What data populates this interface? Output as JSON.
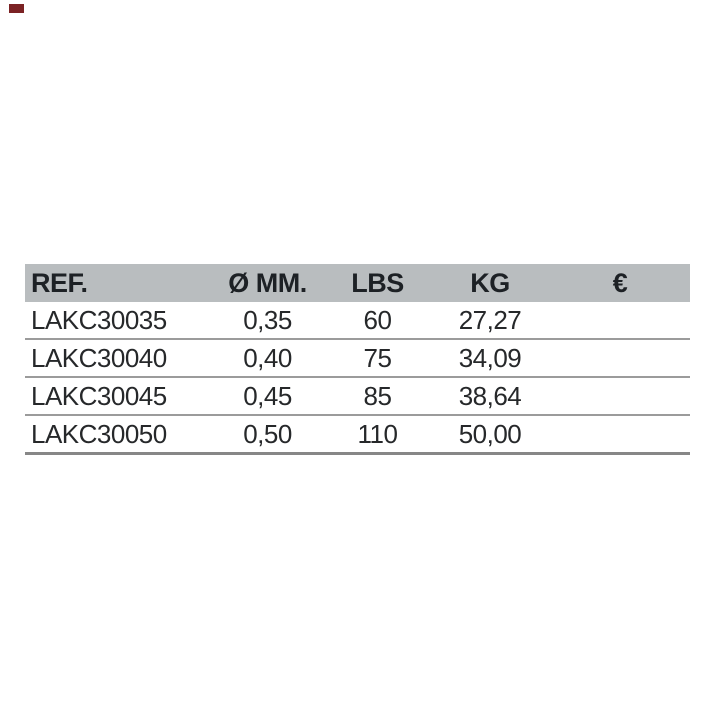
{
  "chart_data": {
    "type": "table",
    "title": "",
    "columns": [
      "REF.",
      "Ø MM.",
      "LBS",
      "KG",
      "€"
    ],
    "rows": [
      [
        "LAKC30035",
        "0,35",
        "60",
        "27,27",
        ""
      ],
      [
        "LAKC30040",
        "0,40",
        "75",
        "34,09",
        ""
      ],
      [
        "LAKC30045",
        "0,45",
        "85",
        "38,64",
        ""
      ],
      [
        "LAKC30050",
        "0,50",
        "110",
        "50,00",
        ""
      ]
    ]
  },
  "colors": {
    "page_background": "#ffffff",
    "header_background": "#b9bdbf",
    "header_text": "#1d2125",
    "row_text": "#26282a",
    "row_separator": "#9b9b9b",
    "bottom_border": "#878787",
    "corner_mark": "#7b2224"
  }
}
